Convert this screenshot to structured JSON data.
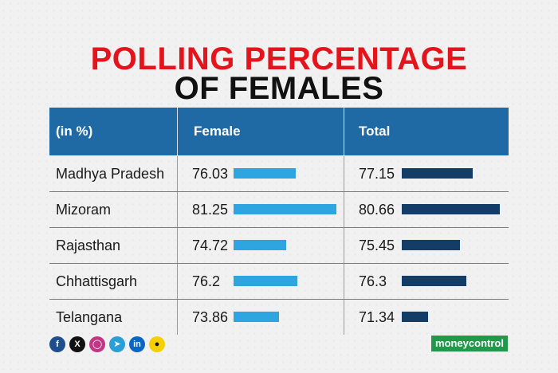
{
  "title_line1": "POLLING PERCENTAGE",
  "title_line2": "OF FEMALES",
  "colors": {
    "title_red": "#e3141c",
    "header_blue": "#1f6aa5",
    "female_bar": "#2ea4e0",
    "total_bar": "#133d66"
  },
  "chart_data": {
    "type": "table",
    "columns": [
      "(in %)",
      "Female",
      "Total"
    ],
    "rows": [
      {
        "state": "Madhya Pradesh",
        "female": "76.03",
        "total": "77.15"
      },
      {
        "state": "Mizoram",
        "female": "81.25",
        "total": "80.66"
      },
      {
        "state": "Rajasthan",
        "female": "74.72",
        "total": "75.45"
      },
      {
        "state": "Chhattisgarh",
        "female": "76.2",
        "total": "76.3"
      },
      {
        "state": "Telangana",
        "female": "73.86",
        "total": "71.34"
      }
    ]
  },
  "social_icons": [
    "facebook-icon",
    "x-icon",
    "instagram-icon",
    "telegram-icon",
    "linkedin-icon",
    "snapchat-icon"
  ],
  "logo_text": "moneycontrol"
}
